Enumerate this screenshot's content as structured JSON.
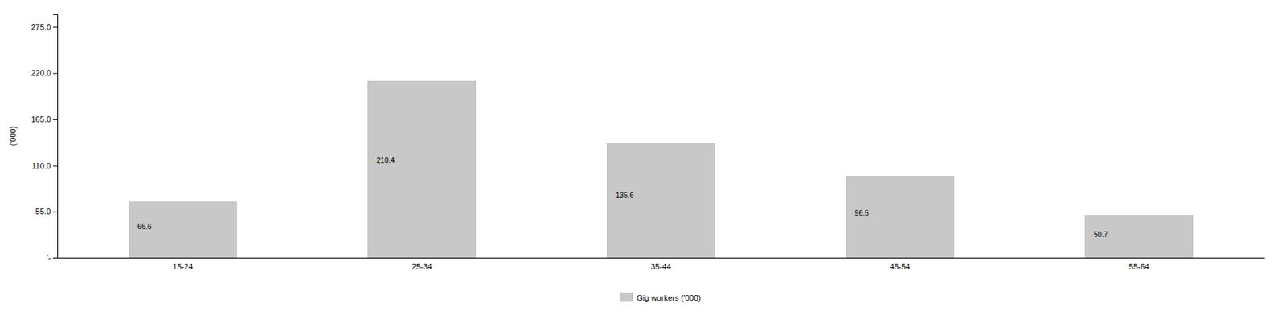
{
  "chart_data": {
    "type": "bar",
    "ylabel": "('000)",
    "categories": [
      "15-24",
      "25-34",
      "35-44",
      "45-54",
      "55-64"
    ],
    "series": [
      {
        "name": "Gig workers ('000)",
        "color": "#c8c8c8",
        "values": [
          66.6,
          210.4,
          135.6,
          96.5,
          50.7
        ]
      }
    ],
    "ylim": [
      0,
      290
    ],
    "yticks": [
      {
        "value": 0,
        "label": "'-"
      },
      {
        "value": 55,
        "label": "55.0"
      },
      {
        "value": 110,
        "label": "110.0"
      },
      {
        "value": 165,
        "label": "165.0"
      },
      {
        "value": 220,
        "label": "220.0"
      },
      {
        "value": 275,
        "label": "275.0"
      }
    ],
    "grid": false,
    "legend": "bottom",
    "data_labels": true
  }
}
